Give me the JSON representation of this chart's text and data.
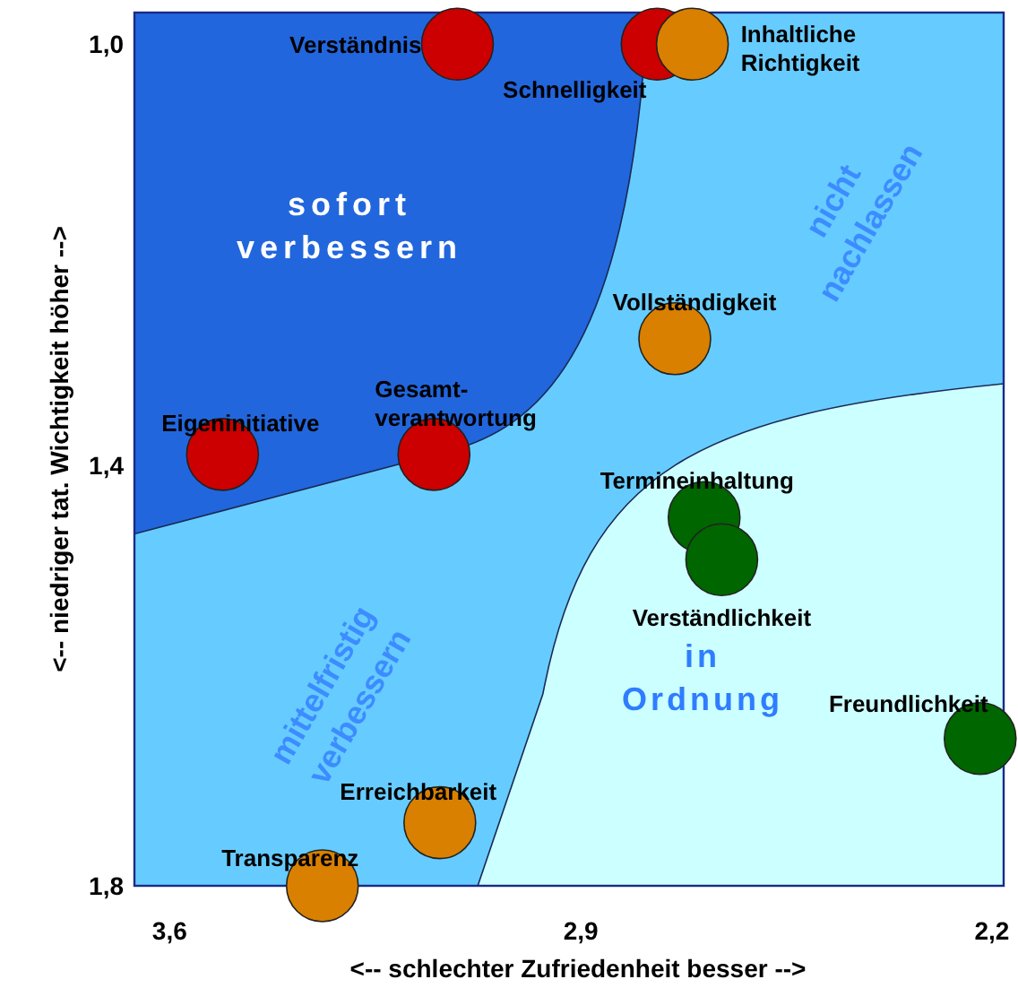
{
  "chart_data": {
    "type": "scatter",
    "xlabel": "<-- schlechter   Zufriedenheit   besser -->",
    "ylabel": "<-- niedriger   tat. Wichtigkeit   höher -->",
    "xlim": [
      3.66,
      2.18
    ],
    "xticks": [
      {
        "value": 3.6,
        "label": "3,6"
      },
      {
        "value": 2.9,
        "label": "2,9"
      },
      {
        "value": 2.2,
        "label": "2,2"
      }
    ],
    "ylim": [
      1.8,
      0.97
    ],
    "yticks": [
      {
        "value": 1.0,
        "label": "1,0"
      },
      {
        "value": 1.4,
        "label": "1,4"
      },
      {
        "value": 1.8,
        "label": "1,8"
      }
    ],
    "grid": false,
    "marker": "circle",
    "series": [
      {
        "color": "#cc0000",
        "x": [
          3.11,
          2.77,
          3.15,
          3.51
        ],
        "values": [
          1.0,
          1.0,
          1.39,
          1.39
        ]
      },
      {
        "color": "#d98000",
        "x": [
          2.71,
          2.74,
          3.14,
          3.34
        ],
        "values": [
          1.0,
          1.28,
          1.74,
          1.8
        ]
      },
      {
        "color": "#006600",
        "x": [
          2.69,
          2.66,
          2.22
        ],
        "values": [
          1.45,
          1.49,
          1.66
        ]
      }
    ],
    "annotations": [
      "sofort\nverbessern",
      "nicht\nnachlassen",
      "mittelfristig\nverbessern",
      "in\nOrdnung",
      {
        "text": "Verständnis",
        "x": 3.11,
        "y": 1.0
      },
      {
        "text": "Schnelligkeit",
        "x": 2.77,
        "y": 1.0
      },
      {
        "text": "Gesamt-\nverantwortung",
        "x": 3.15,
        "y": 1.39
      },
      {
        "text": "Eigeninitiative",
        "x": 3.51,
        "y": 1.39
      },
      {
        "text": "Inhaltliche\nRichtigkeit",
        "x": 2.71,
        "y": 1.0
      },
      {
        "text": "Vollständigkeit",
        "x": 2.74,
        "y": 1.28
      },
      {
        "text": "Erreichbarkeit",
        "x": 3.14,
        "y": 1.74
      },
      {
        "text": "Transparenz",
        "x": 3.34,
        "y": 1.8
      },
      {
        "text": "Termineinhaltung",
        "x": 2.69,
        "y": 1.45
      },
      {
        "text": "Verständlichkeit",
        "x": 2.66,
        "y": 1.49
      },
      {
        "text": "Freundlichkeit",
        "x": 2.22,
        "y": 1.66
      }
    ]
  }
}
